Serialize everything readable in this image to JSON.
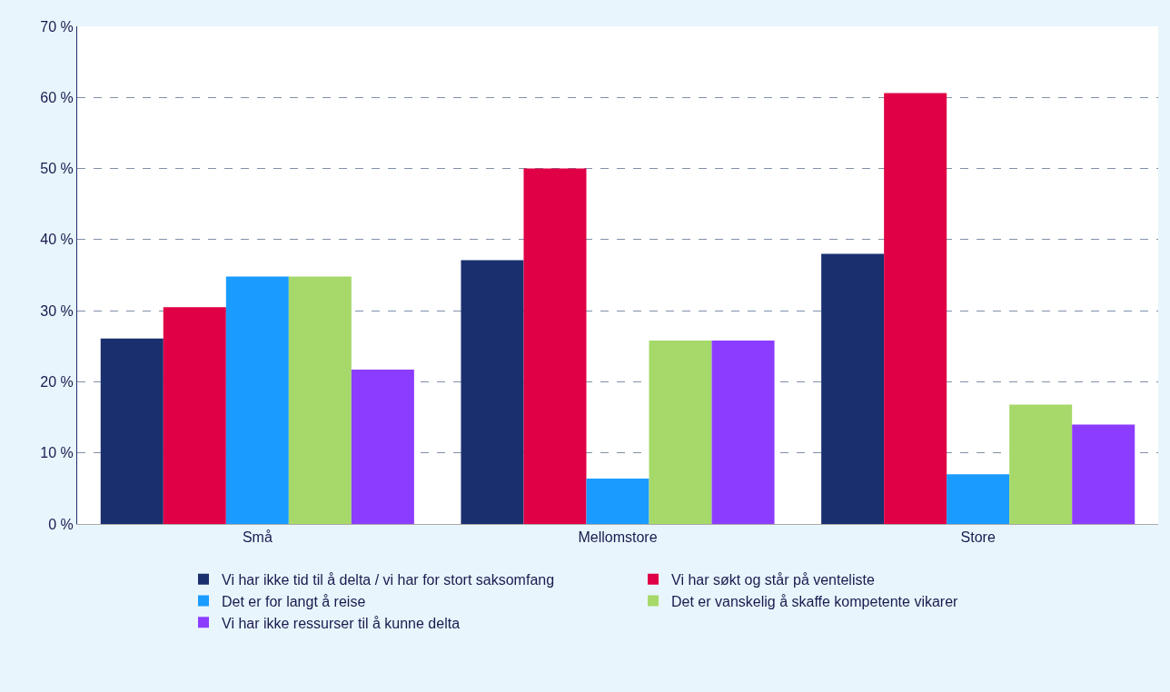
{
  "chart_data": {
    "type": "bar",
    "categories": [
      "Små",
      "Mellomstore",
      "Store"
    ],
    "series": [
      {
        "name": "Vi har ikke tid til å delta / vi har for stort saksomfang",
        "color": "#1a2f6e",
        "values": [
          26.1,
          37.1,
          38.0
        ]
      },
      {
        "name": "Vi har søkt og står på venteliste",
        "color": "#e00046",
        "values": [
          30.5,
          50.0,
          60.6
        ]
      },
      {
        "name": "Det er for langt å reise",
        "color": "#1a9bff",
        "values": [
          34.8,
          6.4,
          7.0
        ]
      },
      {
        "name": "Det er vanskelig å skaffe kompetente vikarer",
        "color": "#a6d96a",
        "values": [
          34.8,
          25.8,
          16.8
        ]
      },
      {
        "name": "Vi har ikke ressurser til å kunne delta",
        "color": "#8c3cff",
        "values": [
          21.7,
          25.8,
          14.0
        ]
      }
    ],
    "ylim": [
      0,
      70
    ],
    "yticks": [
      {
        "value": 0,
        "label": "0 %"
      },
      {
        "value": 10,
        "label": "10 %"
      },
      {
        "value": 20,
        "label": "20 %"
      },
      {
        "value": 30,
        "label": "30 %"
      },
      {
        "value": 40,
        "label": "40 %"
      },
      {
        "value": 50,
        "label": "50 %"
      },
      {
        "value": 60,
        "label": "60 %"
      },
      {
        "value": 70,
        "label": "70 %"
      }
    ],
    "grid": "y",
    "legend": "bottom"
  }
}
